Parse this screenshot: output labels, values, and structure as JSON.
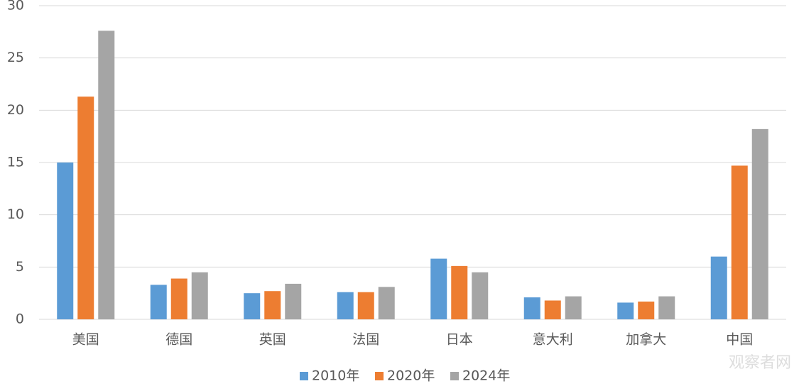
{
  "chart_data": {
    "type": "bar",
    "categories": [
      "美国",
      "德国",
      "英国",
      "法国",
      "日本",
      "意大利",
      "加拿大",
      "中国"
    ],
    "series": [
      {
        "name": "2010年",
        "color": "#5b9bd5",
        "values": [
          15.0,
          3.3,
          2.5,
          2.6,
          5.8,
          2.1,
          1.6,
          6.0
        ]
      },
      {
        "name": "2020年",
        "color": "#ed7d31",
        "values": [
          21.3,
          3.9,
          2.7,
          2.6,
          5.1,
          1.8,
          1.7,
          14.7
        ]
      },
      {
        "name": "2024年",
        "color": "#a5a5a5",
        "values": [
          27.6,
          4.5,
          3.4,
          3.1,
          4.5,
          2.2,
          2.2,
          18.2
        ]
      }
    ],
    "ylim": [
      0,
      30
    ],
    "yticks": [
      0,
      5,
      10,
      15,
      20,
      25,
      30
    ],
    "grid": true,
    "legend": "bottom",
    "watermark": "观察者网"
  }
}
